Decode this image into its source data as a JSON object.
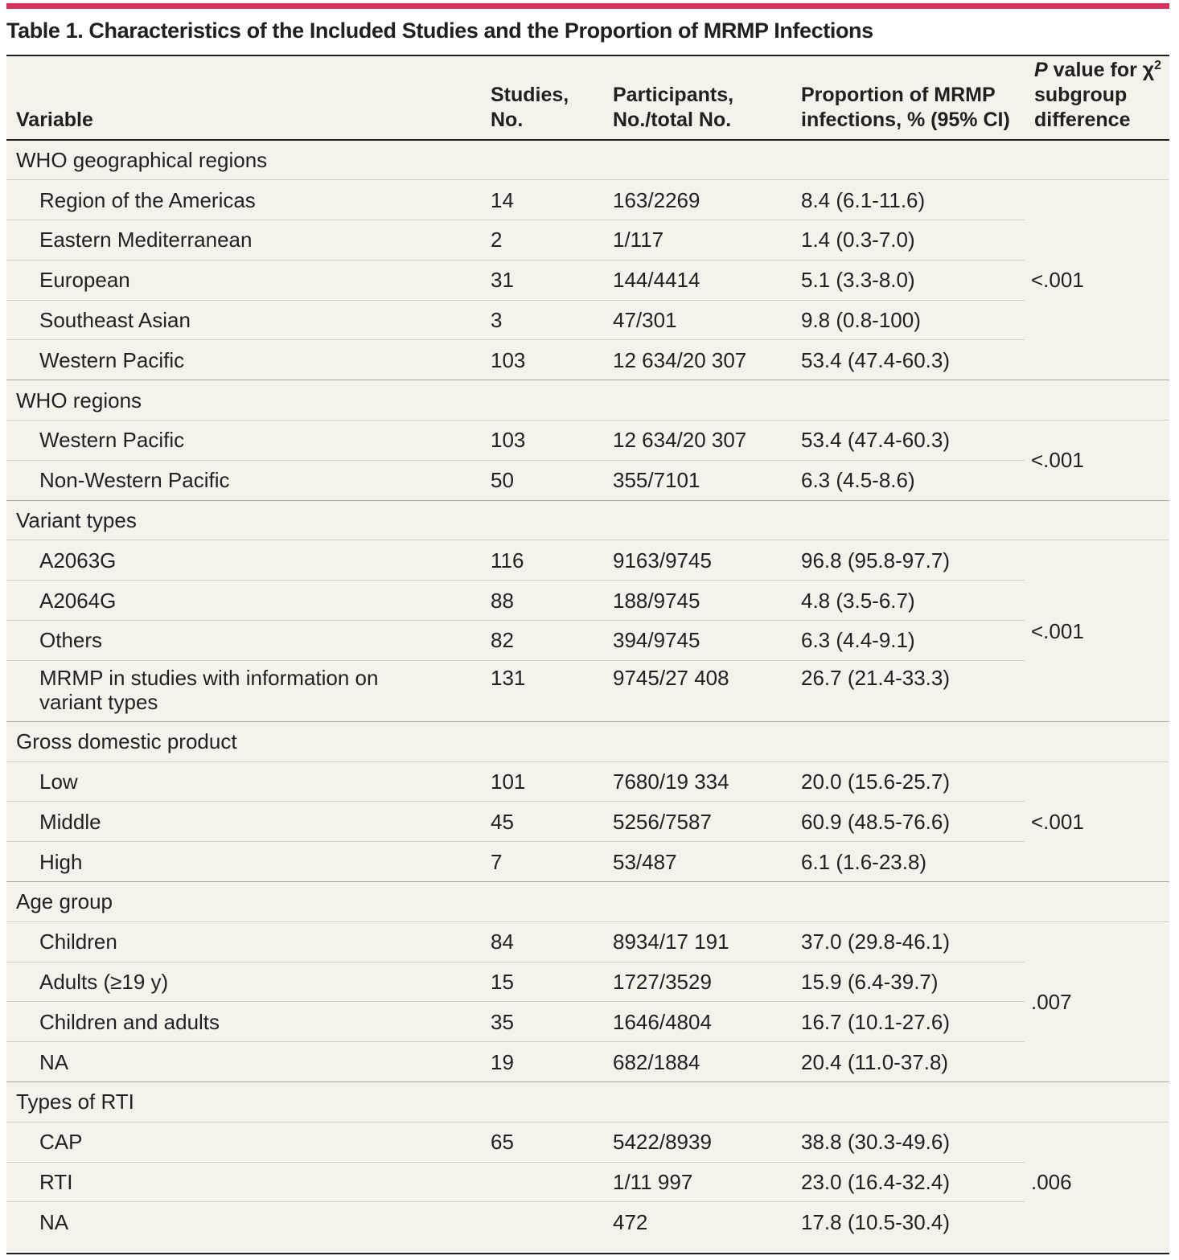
{
  "table": {
    "title": "Table 1. Characteristics of the Included Studies and the Proportion of MRMP Infections",
    "headers": {
      "variable": "Variable",
      "studies": "Studies, No.",
      "participants": "Participants, No./total No.",
      "proportion": "Proportion of MRMP infections, % (95% CI)",
      "pvalue_prefix": "P",
      "pvalue_rest": " value for χ",
      "pvalue_sup": "2",
      "pvalue_line2": "subgroup difference"
    },
    "groups": [
      {
        "name": "WHO geographical regions",
        "p_value": "<.001",
        "rows": [
          {
            "variable": "Region of the Americas",
            "studies": "14",
            "participants": "163/2269",
            "proportion": "8.4 (6.1-11.6)"
          },
          {
            "variable": "Eastern Mediterranean",
            "studies": "2",
            "participants": "1/117",
            "proportion": "1.4 (0.3-7.0)"
          },
          {
            "variable": "European",
            "studies": "31",
            "participants": "144/4414",
            "proportion": "5.1 (3.3-8.0)"
          },
          {
            "variable": "Southeast Asian",
            "studies": "3",
            "participants": "47/301",
            "proportion": "9.8 (0.8-100)"
          },
          {
            "variable": "Western Pacific",
            "studies": "103",
            "participants": "12 634/20 307",
            "proportion": "53.4 (47.4-60.3)"
          }
        ]
      },
      {
        "name": "WHO regions",
        "p_value": "<.001",
        "rows": [
          {
            "variable": "Western Pacific",
            "studies": "103",
            "participants": "12 634/20 307",
            "proportion": "53.4 (47.4-60.3)"
          },
          {
            "variable": "Non-Western Pacific",
            "studies": "50",
            "participants": "355/7101",
            "proportion": "6.3 (4.5-8.6)"
          }
        ]
      },
      {
        "name": "Variant types",
        "p_value": "<.001",
        "rows": [
          {
            "variable": "A2063G",
            "studies": "116",
            "participants": "9163/9745",
            "proportion": "96.8 (95.8-97.7)"
          },
          {
            "variable": "A2064G",
            "studies": "88",
            "participants": "188/9745",
            "proportion": "4.8 (3.5-6.7)"
          },
          {
            "variable": "Others",
            "studies": "82",
            "participants": "394/9745",
            "proportion": "6.3 (4.4-9.1)"
          },
          {
            "variable": "MRMP in studies with information on variant types",
            "studies": "131",
            "participants": "9745/27 408",
            "proportion": "26.7 (21.4-33.3)"
          }
        ]
      },
      {
        "name": "Gross domestic product",
        "p_value": "<.001",
        "rows": [
          {
            "variable": "Low",
            "studies": "101",
            "participants": "7680/19 334",
            "proportion": "20.0 (15.6-25.7)"
          },
          {
            "variable": "Middle",
            "studies": "45",
            "participants": "5256/7587",
            "proportion": "60.9 (48.5-76.6)"
          },
          {
            "variable": "High",
            "studies": "7",
            "participants": "53/487",
            "proportion": "6.1 (1.6-23.8)"
          }
        ]
      },
      {
        "name": "Age group",
        "p_value": ".007",
        "rows": [
          {
            "variable": "Children",
            "studies": "84",
            "participants": "8934/17 191",
            "proportion": "37.0 (29.8-46.1)"
          },
          {
            "variable": "Adults (≥19 y)",
            "studies": "15",
            "participants": "1727/3529",
            "proportion": "15.9 (6.4-39.7)"
          },
          {
            "variable": "Children and adults",
            "studies": "35",
            "participants": "1646/4804",
            "proportion": "16.7 (10.1-27.6)"
          },
          {
            "variable": "NA",
            "studies": "19",
            "participants": "682/1884",
            "proportion": "20.4 (11.0-37.8)"
          }
        ]
      },
      {
        "name": "Types of RTI",
        "p_value": ".006",
        "rows": [
          {
            "variable": "CAP",
            "studies": "65",
            "participants": "5422/8939",
            "proportion": "38.8 (30.3-49.6)"
          },
          {
            "variable": "RTI",
            "studies": "",
            "participants": "1/11 997",
            "proportion": "23.0 (16.4-32.4)"
          },
          {
            "variable": "NA",
            "studies": "",
            "participants": "472",
            "proportion": "17.8 (10.5-30.4)"
          }
        ]
      }
    ]
  }
}
